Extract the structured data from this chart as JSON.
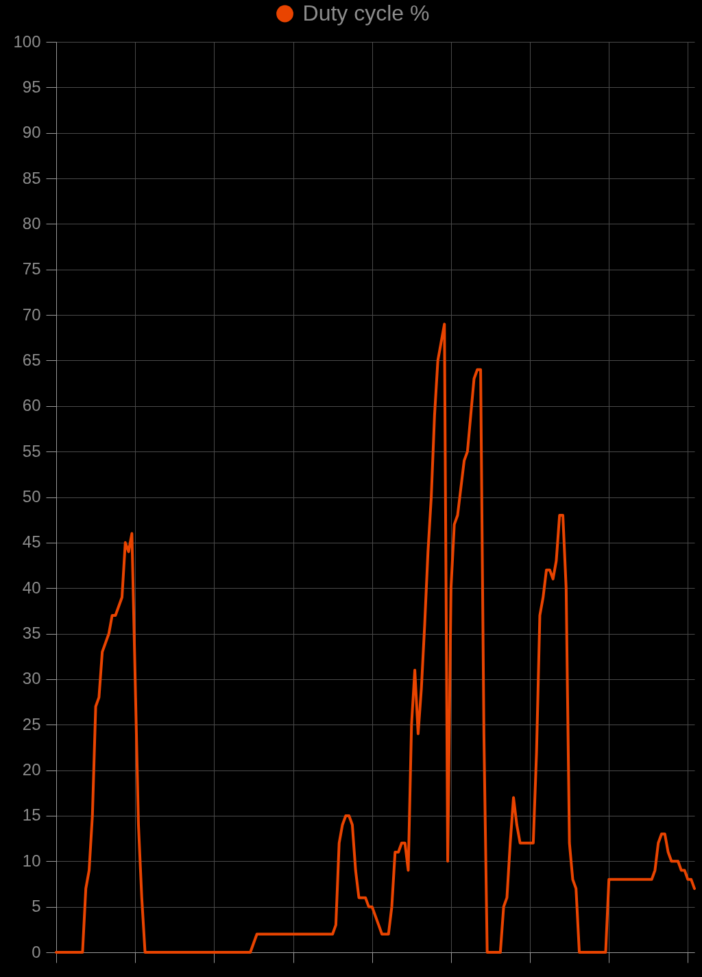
{
  "chart_data": {
    "type": "line",
    "categories": [
      null,
      null,
      null,
      null,
      null,
      null,
      null,
      null,
      null,
      null,
      null,
      null,
      null,
      null,
      null,
      null,
      null,
      null,
      null,
      null,
      null,
      null,
      null,
      null,
      null,
      null,
      null,
      null,
      null,
      null,
      null,
      null,
      null,
      null,
      null,
      null,
      null,
      null,
      null,
      null,
      null,
      null,
      null,
      null,
      null,
      null,
      null,
      null,
      null,
      null,
      null,
      null,
      null,
      null,
      null,
      null,
      null,
      null,
      null,
      null,
      null,
      null,
      null,
      null,
      null,
      null,
      null,
      null,
      null,
      null,
      null,
      null,
      null,
      null,
      null,
      null,
      null,
      null,
      null,
      null,
      null,
      null,
      null,
      null,
      null,
      null,
      null,
      null,
      null,
      null,
      null,
      null,
      null,
      null,
      null,
      null,
      null,
      null,
      null,
      null,
      null,
      null,
      null,
      null,
      null,
      null,
      null,
      null,
      null,
      null,
      null,
      null,
      null,
      null,
      null,
      null,
      null,
      null,
      null,
      null,
      null,
      null,
      null,
      null,
      null,
      null,
      null,
      null,
      null,
      null,
      null,
      null,
      null,
      null,
      null,
      null,
      null,
      null,
      null,
      null,
      null,
      null,
      null,
      null,
      null,
      null,
      null,
      null,
      null,
      null,
      null,
      null,
      null,
      null,
      null,
      null,
      null,
      null,
      null,
      null,
      null,
      null,
      null,
      null,
      null,
      null,
      null,
      null,
      null,
      null,
      null,
      null,
      null,
      null,
      null,
      null,
      null,
      null,
      null,
      null,
      null,
      null,
      null,
      null,
      null,
      null,
      null,
      null,
      null,
      null,
      null,
      null,
      null,
      null,
      null
    ],
    "series": [
      {
        "name": "Duty cycle %",
        "color": "#e94400",
        "values": [
          0,
          0,
          0,
          0,
          0,
          0,
          0,
          0,
          0,
          7,
          9,
          15,
          27,
          28,
          33,
          34,
          35,
          37,
          37,
          38,
          39,
          45,
          44,
          46,
          30,
          14,
          6,
          0,
          0,
          0,
          0,
          0,
          0,
          0,
          0,
          0,
          0,
          0,
          0,
          0,
          0,
          0,
          0,
          0,
          0,
          0,
          0,
          0,
          0,
          0,
          0,
          0,
          0,
          0,
          0,
          0,
          0,
          0,
          0,
          0,
          1,
          2,
          2,
          2,
          2,
          2,
          2,
          2,
          2,
          2,
          2,
          2,
          2,
          2,
          2,
          2,
          2,
          2,
          2,
          2,
          2,
          2,
          2,
          2,
          2,
          3,
          12,
          14,
          15,
          15,
          14,
          9,
          6,
          6,
          6,
          5,
          5,
          4,
          3,
          2,
          2,
          2,
          5,
          11,
          11,
          12,
          12,
          9,
          25,
          31,
          24,
          29,
          36,
          44,
          50,
          59,
          65,
          67,
          69,
          10,
          40,
          47,
          48,
          51,
          54,
          55,
          59,
          63,
          64,
          64,
          24,
          0,
          0,
          0,
          0,
          0,
          5,
          6,
          12,
          17,
          14,
          12,
          12,
          12,
          12,
          12,
          22,
          37,
          39,
          42,
          42,
          41,
          43,
          48,
          48,
          40,
          12,
          8,
          7,
          0,
          0,
          0,
          0,
          0,
          0,
          0,
          0,
          0,
          8,
          8,
          8,
          8,
          8,
          8,
          8,
          8,
          8,
          8,
          8,
          8,
          8,
          8,
          9,
          12,
          13,
          13,
          11,
          10,
          10,
          10,
          9,
          9,
          8,
          8,
          7
        ]
      }
    ],
    "ylim": [
      0,
      100
    ],
    "yticks": [
      0,
      5,
      10,
      15,
      20,
      25,
      30,
      35,
      40,
      45,
      50,
      55,
      60,
      65,
      70,
      75,
      80,
      85,
      90,
      95,
      100
    ],
    "grid": true,
    "legend": "top"
  }
}
